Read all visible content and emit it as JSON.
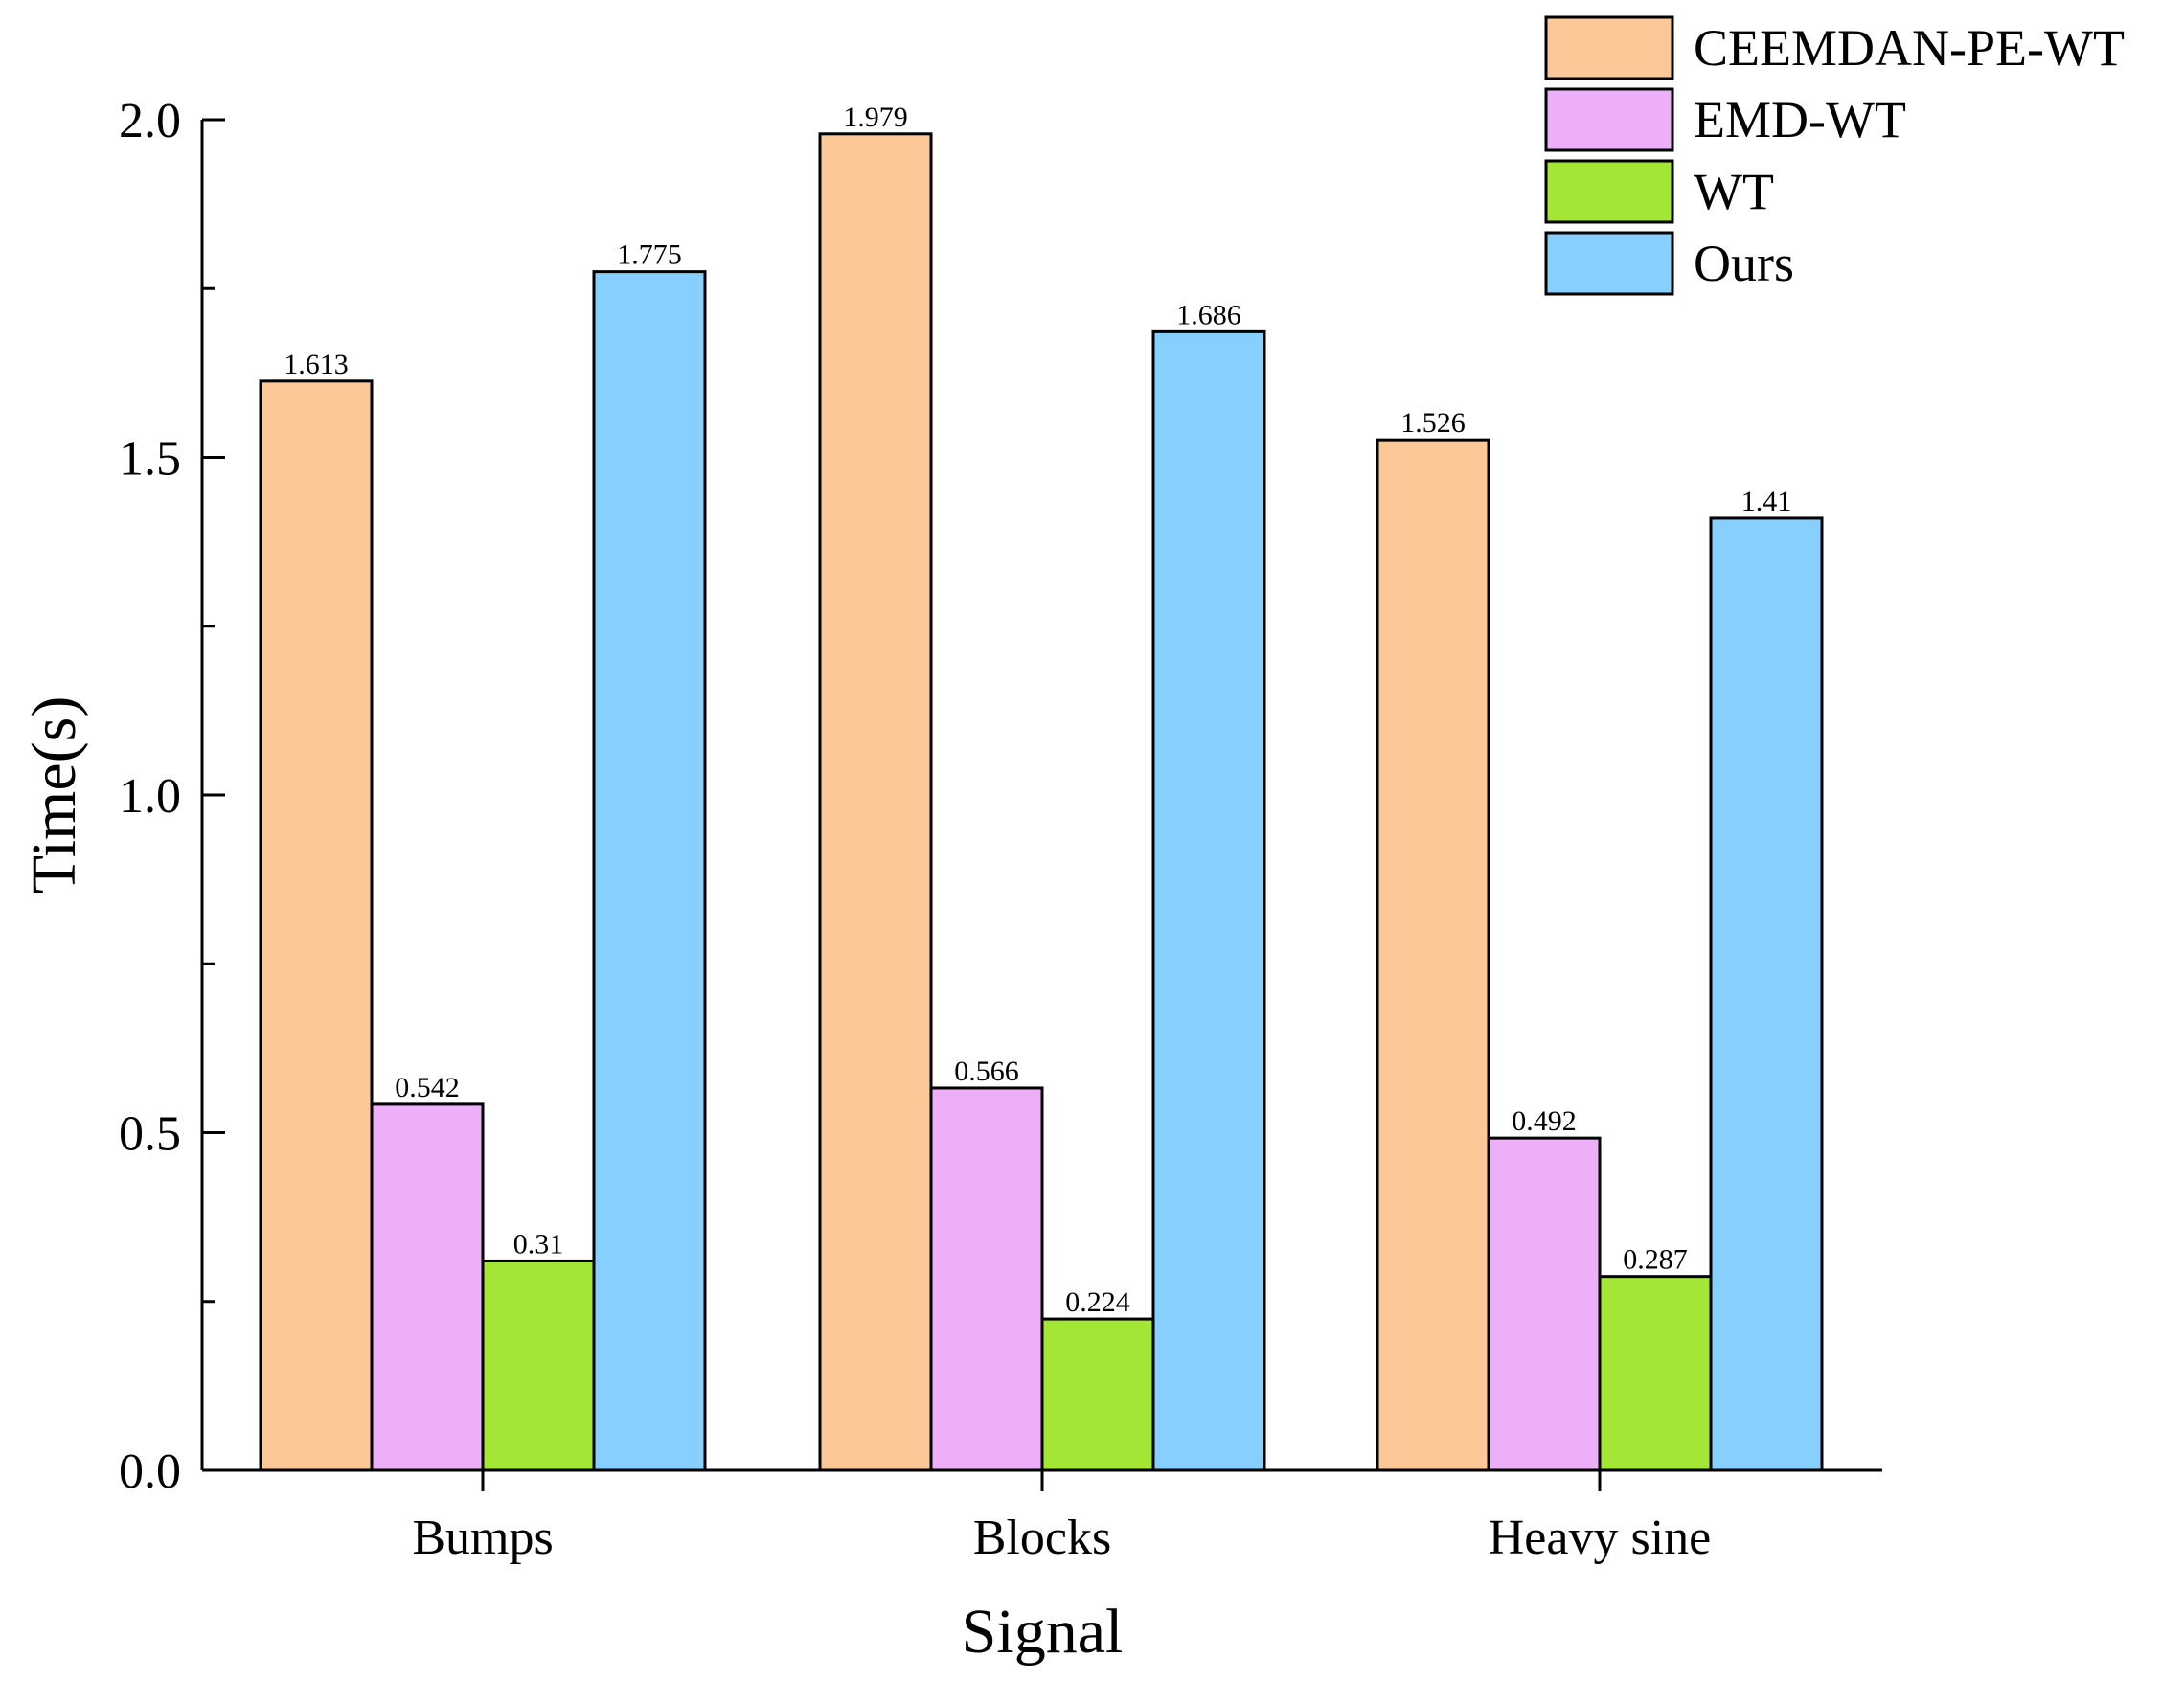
{
  "chart_data": {
    "type": "bar",
    "title": "",
    "xlabel": "Signal",
    "ylabel": "Time(s)",
    "categories": [
      "Bumps",
      "Blocks",
      "Heavy sine"
    ],
    "ylim": [
      0,
      2.0
    ],
    "yticks": [
      "0.0",
      "0.5",
      "1.0",
      "1.5",
      "2.0"
    ],
    "grid": false,
    "legend_position": "top-right",
    "series": [
      {
        "name": "CEEMDAN-PE-WT",
        "color": "#FDC897",
        "values": [
          1.613,
          1.979,
          1.526
        ],
        "labels": [
          "1.613",
          "1.979",
          "1.526"
        ]
      },
      {
        "name": "EMD-WT",
        "color": "#ECAFF8",
        "values": [
          0.542,
          0.566,
          0.492
        ],
        "labels": [
          "0.542",
          "0.566",
          "0.492"
        ]
      },
      {
        "name": "WT",
        "color": "#A3E635",
        "values": [
          0.31,
          0.224,
          0.287
        ],
        "labels": [
          "0.31",
          "0.224",
          "0.287"
        ]
      },
      {
        "name": "Ours",
        "color": "#86CFFE",
        "values": [
          1.775,
          1.686,
          1.41
        ],
        "labels": [
          "1.775",
          "1.686",
          "1.41"
        ]
      }
    ]
  }
}
